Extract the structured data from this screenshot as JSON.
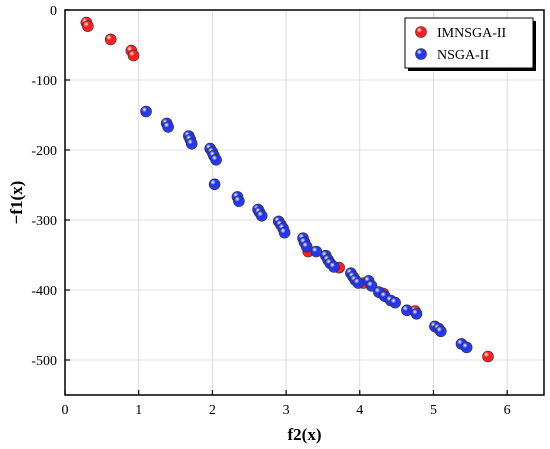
{
  "chart_data": {
    "type": "scatter",
    "title": "",
    "xlabel": "f2(x)",
    "ylabel": "−f1(x)",
    "xlim": [
      0,
      6.5
    ],
    "ylim": [
      -550,
      0
    ],
    "xticks": [
      "0",
      "1",
      "2",
      "3",
      "4",
      "5",
      "6"
    ],
    "yticks": [
      "0",
      "-100",
      "-200",
      "-300",
      "-400",
      "-500"
    ],
    "xtick_values": [
      0,
      1,
      2,
      3,
      4,
      5,
      6
    ],
    "ytick_values": [
      0,
      -100,
      -200,
      -300,
      -400,
      -500
    ],
    "grid": true,
    "legend_position": "top-right",
    "series": [
      {
        "name": "IMNSGA-II",
        "color": "#ff1a1a",
        "points": [
          [
            0.29,
            -18
          ],
          [
            0.31,
            -23
          ],
          [
            0.62,
            -42
          ],
          [
            0.9,
            -58
          ],
          [
            0.93,
            -65
          ],
          [
            3.3,
            -345
          ],
          [
            3.72,
            -368
          ],
          [
            4.05,
            -390
          ],
          [
            4.32,
            -405
          ],
          [
            4.75,
            -430
          ],
          [
            5.74,
            -495
          ]
        ]
      },
      {
        "name": "NSGA-II",
        "color": "#2233ee",
        "points": [
          [
            1.1,
            -145
          ],
          [
            1.38,
            -162
          ],
          [
            1.4,
            -167
          ],
          [
            1.68,
            -180
          ],
          [
            1.7,
            -185
          ],
          [
            1.72,
            -191
          ],
          [
            1.97,
            -198
          ],
          [
            2.0,
            -203
          ],
          [
            2.02,
            -208
          ],
          [
            2.05,
            -214
          ],
          [
            2.03,
            -249
          ],
          [
            2.34,
            -267
          ],
          [
            2.36,
            -273
          ],
          [
            2.62,
            -285
          ],
          [
            2.64,
            -289
          ],
          [
            2.67,
            -294
          ],
          [
            2.9,
            -302
          ],
          [
            2.93,
            -307
          ],
          [
            2.96,
            -312
          ],
          [
            2.98,
            -318
          ],
          [
            3.23,
            -326
          ],
          [
            3.25,
            -332
          ],
          [
            3.28,
            -338
          ],
          [
            3.41,
            -345
          ],
          [
            3.54,
            -351
          ],
          [
            3.57,
            -357
          ],
          [
            3.6,
            -362
          ],
          [
            3.65,
            -367
          ],
          [
            3.88,
            -376
          ],
          [
            3.91,
            -381
          ],
          [
            3.94,
            -386
          ],
          [
            3.98,
            -390
          ],
          [
            4.12,
            -387
          ],
          [
            4.16,
            -394
          ],
          [
            4.26,
            -403
          ],
          [
            4.34,
            -409
          ],
          [
            4.42,
            -415
          ],
          [
            4.48,
            -418
          ],
          [
            4.64,
            -429
          ],
          [
            4.77,
            -434
          ],
          [
            5.02,
            -452
          ],
          [
            5.07,
            -455
          ],
          [
            5.1,
            -459
          ],
          [
            5.38,
            -477
          ],
          [
            5.45,
            -482
          ]
        ]
      }
    ]
  }
}
